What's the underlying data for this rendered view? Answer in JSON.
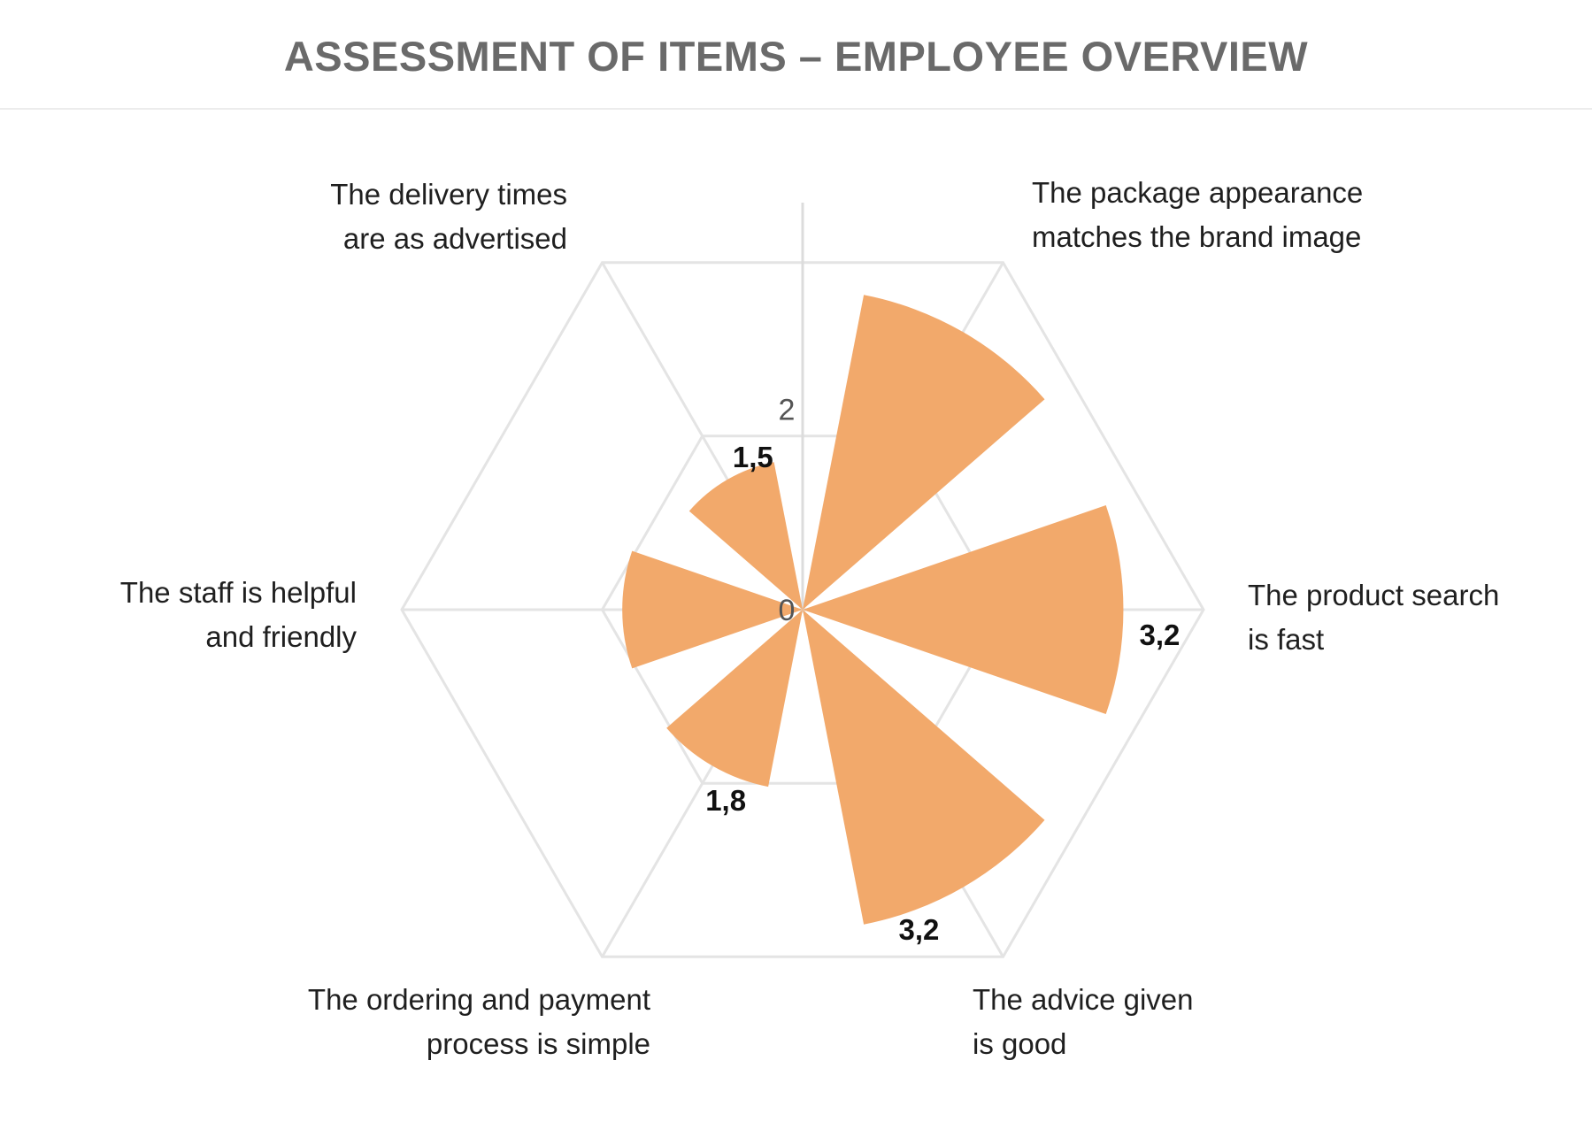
{
  "chart_data": {
    "type": "polar-area",
    "title": "ASSESSMENT OF ITEMS – EMPLOYEE OVERVIEW",
    "categories": [
      "The package appearance matches the brand image",
      "The product search is fast",
      "The advice given is good",
      "The ordering and payment process is simple",
      "The staff is helpful and friendly",
      "The delivery times are as advertised"
    ],
    "category_lines": [
      [
        "The package appearance",
        "matches the brand image"
      ],
      [
        "The product search",
        "is fast"
      ],
      [
        "The advice given",
        "is good"
      ],
      [
        "The ordering and payment",
        "process is simple"
      ],
      [
        "The staff is helpful",
        "and friendly"
      ],
      [
        "The delivery times",
        "are as advertised"
      ]
    ],
    "values": [
      3.2,
      3.2,
      3.2,
      1.8,
      1.8,
      1.5
    ],
    "data_labels": [
      "",
      "3,2",
      "3,2",
      "1,8",
      "",
      "1,5"
    ],
    "radial_ticks": [
      "0",
      "2"
    ],
    "rmax": 4,
    "grid": true,
    "colors": {
      "wedge": "#f2a96b",
      "grid": "#e4e4e4",
      "axis": "#dcdcdc",
      "tick_text": "#555555",
      "data_label_text": "#111111",
      "title": "#6a6a6a"
    }
  }
}
